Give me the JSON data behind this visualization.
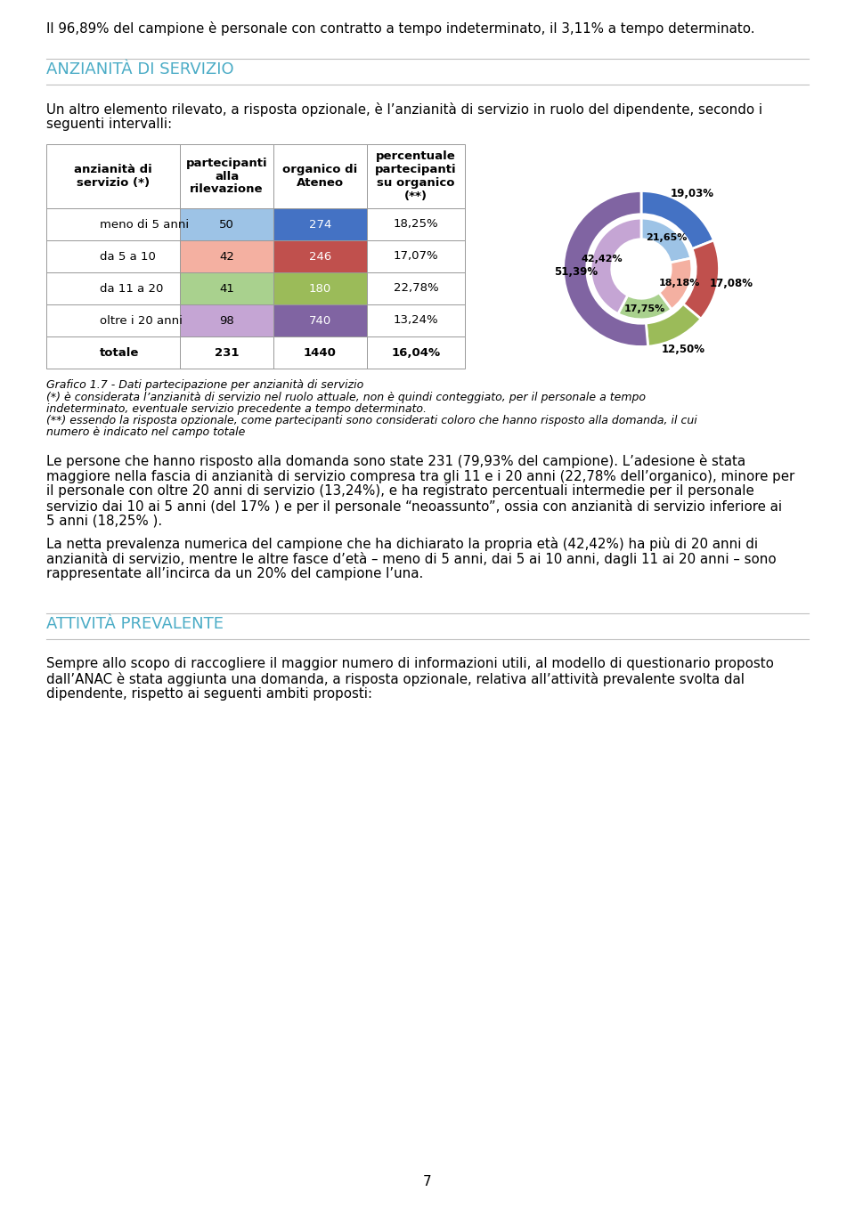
{
  "page_bg": "#ffffff",
  "top_text": "Il 96,89% del campione è personale con contratto a tempo indeterminato, il 3,11% a tempo determinato.",
  "section_title": "ANZIANITÀ DI SERVIZIO",
  "section_title_color": "#4BACC6",
  "intro_line1": "Un altro elemento rilevato, a risposta opzionale, è l’anzianità di servizio in ruolo del dipendente, secondo i",
  "intro_line2": "seguenti intervalli:",
  "table_headers": [
    "anzianità di\nservizio (*)",
    "partecipanti\nalla\nrilevazione",
    "organico di\nAteneo",
    "percentuale\npartecipanti\nsu organico\n(**)"
  ],
  "table_rows": [
    [
      "meno di 5 anni",
      "50",
      "274",
      "18,25%"
    ],
    [
      "da 5 a 10",
      "42",
      "246",
      "17,07%"
    ],
    [
      "da 11 a 20",
      "41",
      "180",
      "22,78%"
    ],
    [
      "oltre i 20 anni",
      "98",
      "740",
      "13,24%"
    ],
    [
      "totale",
      "231",
      "1440",
      "16,04%"
    ]
  ],
  "table_col2_colors": [
    "#9DC3E6",
    "#F4B0A1",
    "#A9D18E",
    "#C5A5D4",
    "#ffffff"
  ],
  "table_col3_colors": [
    "#4472C4",
    "#C0504D",
    "#9BBB59",
    "#8064A2",
    "#ffffff"
  ],
  "outer_organico": [
    19.028,
    17.083,
    12.5,
    51.389
  ],
  "outer_colors": [
    "#4472C4",
    "#C0504D",
    "#9BBB59",
    "#8064A2"
  ],
  "inner_participants": [
    21.645,
    18.182,
    17.749,
    42.424
  ],
  "inner_colors": [
    "#9DC3E6",
    "#F4B0A1",
    "#A9D18E",
    "#C5A5D4"
  ],
  "outer_labels": [
    "19,03%",
    "17,08%",
    "12,50%",
    "51,39%"
  ],
  "inner_labels": [
    "21,65%",
    "18,18%",
    "17,75%",
    "42,42%"
  ],
  "caption_title": "Grafico 1.7 - Dati partecipazione per anzianità di servizio",
  "caption_lines": [
    "(*) è considerata l’anzianità di servizio nel ruolo attuale, non è quindi conteggiato, per il personale a tempo",
    "indeterminato, eventuale servizio precedente a tempo determinato.",
    "(**) essendo la risposta opzionale, come partecipanti sono considerati coloro che hanno risposto alla domanda, il cui",
    "numero è indicato nel campo totale"
  ],
  "para1_lines": [
    "Le persone che hanno risposto alla domanda sono state 231 (79,93% del campione). L’adesione è stata",
    "maggiore nella fascia di anzianità di servizio compresa tra gli 11 e i 20 anni (22,78% dell’organico), minore per",
    "il personale con oltre 20 anni di servizio (13,24%), e ha registrato percentuali intermedie per il personale",
    "servizio dai 10 ai 5 anni (del 17% ) e per il personale “neoassunto”, ossia con anzianità di servizio inferiore ai",
    "5 anni (18,25% )."
  ],
  "para2_lines": [
    "La netta prevalenza numerica del campione che ha dichiarato la propria età (42,42%) ha più di 20 anni di",
    "anzianità di servizio, mentre le altre fasce d’età – meno di 5 anni, dai 5 ai 10 anni, dagli 11 ai 20 anni – sono",
    "rappresentate all’incirca da un 20% del campione l’una."
  ],
  "section2_title": "ATTIVITÀ PREVALENTE",
  "section2_lines": [
    "Sempre allo scopo di raccogliere il maggior numero di informazioni utili, al modello di questionario proposto",
    "dall’ANAC è stata aggiunta una domanda, a risposta opzionale, relativa all’attività prevalente svolta dal",
    "dipendente, rispetto ai seguenti ambiti proposti:"
  ],
  "page_number": "7"
}
